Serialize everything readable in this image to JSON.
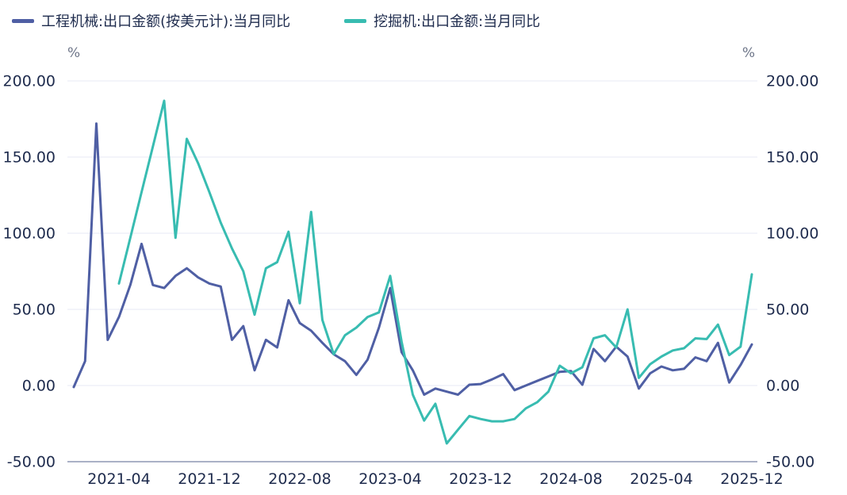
{
  "page": {
    "background": "#ffffff"
  },
  "chart_data": {
    "type": "line",
    "title": "",
    "unit_left": "%",
    "unit_right": "%",
    "legend_position": "top-left",
    "grid": true,
    "ylim": [
      -50,
      200
    ],
    "x": [
      "2020-12",
      "2021-01",
      "2021-02",
      "2021-03",
      "2021-04",
      "2021-05",
      "2021-06",
      "2021-07",
      "2021-08",
      "2021-09",
      "2021-10",
      "2021-11",
      "2021-12",
      "2022-01",
      "2022-02",
      "2022-03",
      "2022-04",
      "2022-05",
      "2022-06",
      "2022-07",
      "2022-08",
      "2022-09",
      "2022-10",
      "2022-11",
      "2022-12",
      "2023-01",
      "2023-02",
      "2023-03",
      "2023-04",
      "2023-05",
      "2023-06",
      "2023-07",
      "2023-08",
      "2023-09",
      "2023-10",
      "2023-11",
      "2023-12",
      "2024-01",
      "2024-02",
      "2024-03",
      "2024-04",
      "2024-05",
      "2024-06",
      "2024-07",
      "2024-08",
      "2024-09",
      "2024-10",
      "2024-11",
      "2024-12",
      "2025-01",
      "2025-02",
      "2025-03",
      "2025-04",
      "2025-05",
      "2025-06",
      "2025-07",
      "2025-08",
      "2025-09",
      "2025-10",
      "2025-11",
      "2025-12"
    ],
    "x_tick_labels": [
      "2021-04",
      "2021-12",
      "2022-08",
      "2023-04",
      "2023-12",
      "2024-08",
      "2025-04",
      "2025-12"
    ],
    "y_ticks": [
      {
        "value": 200,
        "label": "200.00"
      },
      {
        "value": 150,
        "label": "150.00"
      },
      {
        "value": 100,
        "label": "100.00"
      },
      {
        "value": 50,
        "label": "50.00"
      },
      {
        "value": 0,
        "label": "0.00"
      },
      {
        "value": -50,
        "label": "-50.00"
      }
    ],
    "axis_text_color": "#1e2b4d",
    "grid_color": "#e7eaf4",
    "axis_line_color": "#8e97b3",
    "unit_text_color": "#6e7689",
    "series": [
      {
        "name": "工程机械:出口金额(按美元计):当月同比",
        "color": "#4f5fa4",
        "values": [
          -1,
          16,
          172,
          30,
          45,
          66,
          93,
          66,
          64,
          72,
          77,
          71,
          67,
          65,
          30,
          39,
          10,
          30,
          25,
          56,
          41,
          36,
          28,
          20.5,
          16,
          7,
          17,
          38,
          64,
          22,
          10,
          -6,
          -2,
          -4,
          -6,
          0.5,
          1,
          4,
          7.5,
          -3,
          0,
          3,
          6,
          9,
          9.5,
          0.5,
          24,
          16,
          25.5,
          19,
          -2,
          8,
          12.5,
          10,
          11,
          18.5,
          16,
          28,
          2,
          13.5,
          27
        ]
      },
      {
        "name": "挖掘机:出口金额:当月同比",
        "color": "#38bcb1",
        "values": [
          null,
          null,
          null,
          null,
          67,
          97,
          127,
          157,
          187,
          97,
          162,
          146,
          127,
          107,
          90,
          75,
          46.5,
          77,
          81,
          101,
          54,
          114,
          43,
          20.5,
          33,
          38,
          45,
          48,
          72,
          29,
          -6,
          -23,
          -12,
          -38,
          -29,
          -20,
          -22,
          -23.5,
          -23.5,
          -22,
          -15,
          -11,
          -4,
          13,
          8,
          12,
          31,
          33,
          25,
          50,
          5,
          14,
          19,
          23,
          24.5,
          31,
          30.5,
          40,
          20,
          25.5,
          73
        ]
      }
    ]
  }
}
